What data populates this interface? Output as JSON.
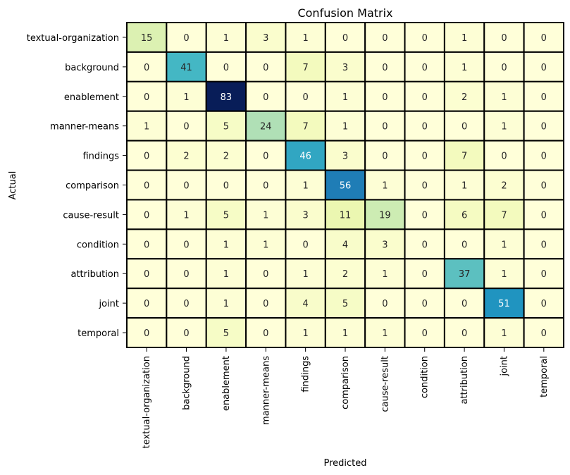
{
  "chart_data": {
    "type": "heatmap",
    "title": "Confusion Matrix",
    "xlabel": "Predicted",
    "ylabel": "Actual",
    "rows": [
      "textual-organization",
      "background",
      "enablement",
      "manner-means",
      "findings",
      "comparison",
      "cause-result",
      "condition",
      "attribution",
      "joint",
      "temporal"
    ],
    "columns": [
      "textual-organization",
      "background",
      "enablement",
      "manner-means",
      "findings",
      "comparison",
      "cause-result",
      "condition",
      "attribution",
      "joint",
      "temporal"
    ],
    "values": [
      [
        15,
        0,
        1,
        3,
        1,
        0,
        0,
        0,
        1,
        0,
        0
      ],
      [
        0,
        41,
        0,
        0,
        7,
        3,
        0,
        0,
        1,
        0,
        0
      ],
      [
        0,
        1,
        83,
        0,
        0,
        1,
        0,
        0,
        2,
        1,
        0
      ],
      [
        1,
        0,
        5,
        24,
        7,
        1,
        0,
        0,
        0,
        1,
        0
      ],
      [
        0,
        2,
        2,
        0,
        46,
        3,
        0,
        0,
        7,
        0,
        0
      ],
      [
        0,
        0,
        0,
        0,
        1,
        56,
        1,
        0,
        1,
        2,
        0
      ],
      [
        0,
        1,
        5,
        1,
        3,
        11,
        19,
        0,
        6,
        7,
        0
      ],
      [
        0,
        0,
        1,
        1,
        0,
        4,
        3,
        0,
        0,
        1,
        0
      ],
      [
        0,
        0,
        1,
        0,
        1,
        2,
        1,
        0,
        37,
        1,
        0
      ],
      [
        0,
        0,
        1,
        0,
        4,
        5,
        0,
        0,
        0,
        51,
        0
      ],
      [
        0,
        0,
        5,
        0,
        1,
        1,
        1,
        0,
        0,
        1,
        0
      ]
    ],
    "colormap": "YlGnBu",
    "vmin": 0,
    "vmax": 83,
    "colorbar": false,
    "annotations": true,
    "cell_border_color": "#000000"
  }
}
